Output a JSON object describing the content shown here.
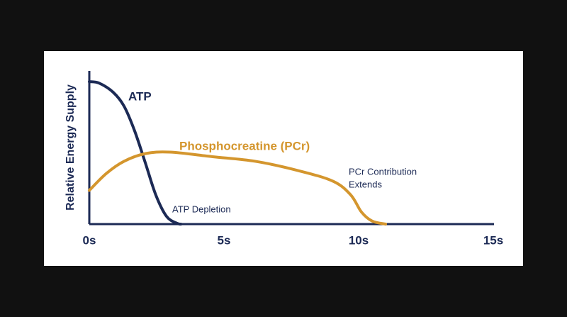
{
  "chart_data": {
    "type": "line",
    "y_label": "Relative Energy Supply",
    "xlim": [
      0,
      15
    ],
    "ylim": [
      0,
      100
    ],
    "xticks": [
      {
        "value": 0,
        "label": "0s"
      },
      {
        "value": 5,
        "label": "5s"
      },
      {
        "value": 10,
        "label": "10s"
      },
      {
        "value": 15,
        "label": "15s"
      }
    ],
    "series": [
      {
        "name": "ATP",
        "color": "#1c2a55",
        "x": [
          0,
          0.37,
          0.89,
          1.29,
          1.68,
          2.08,
          2.47,
          2.87,
          3.26,
          3.4
        ],
        "values": [
          93,
          92,
          86,
          77,
          61,
          40,
          19,
          5,
          0.5,
          0
        ]
      },
      {
        "name": "Phosphocreatine (PCr)",
        "color": "#d4962e",
        "x": [
          0,
          0.63,
          1.29,
          2.08,
          3,
          4.58,
          6.16,
          7.74,
          9.05,
          9.71,
          10.1,
          10.5,
          11
        ],
        "values": [
          22,
          33,
          41,
          46,
          47,
          44,
          41,
          35,
          28,
          19,
          8,
          2,
          0
        ]
      }
    ],
    "annotations": [
      {
        "lines": [
          "PCr Contribution",
          "Extends"
        ]
      },
      {
        "lines": [
          "ATP Depletion"
        ]
      }
    ]
  }
}
